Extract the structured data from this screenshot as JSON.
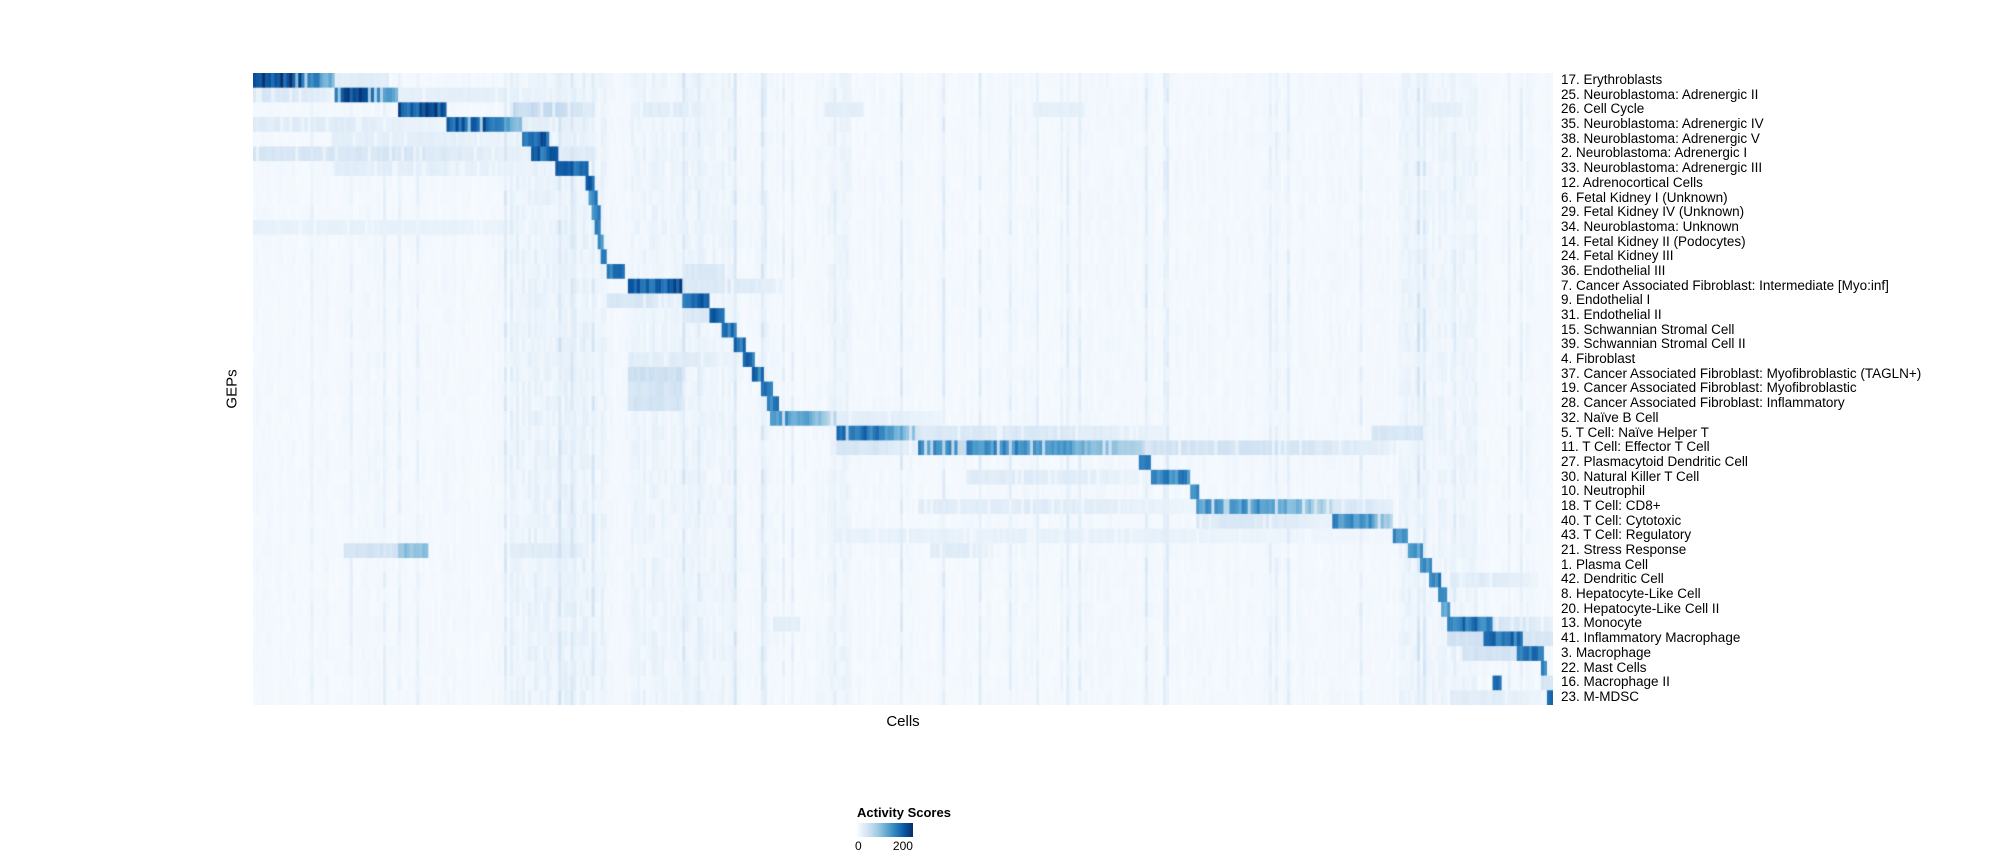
{
  "chart_data": {
    "type": "heatmap",
    "title": "",
    "xlabel": "Cells",
    "ylabel": "GEPs",
    "colorbar": {
      "title": "Activity Scores",
      "min": 0,
      "max": 200,
      "min_label": "0",
      "max_label": "200"
    },
    "colormap": "Blues",
    "colormap_stops": [
      [
        0.0,
        [
          247,
          251,
          255
        ]
      ],
      [
        0.125,
        [
          222,
          235,
          247
        ]
      ],
      [
        0.25,
        [
          198,
          219,
          239
        ]
      ],
      [
        0.375,
        [
          158,
          202,
          225
        ]
      ],
      [
        0.5,
        [
          107,
          174,
          214
        ]
      ],
      [
        0.625,
        [
          66,
          146,
          198
        ]
      ],
      [
        0.75,
        [
          33,
          113,
          181
        ]
      ],
      [
        0.875,
        [
          8,
          81,
          156
        ]
      ],
      [
        1.0,
        [
          8,
          48,
          107
        ]
      ]
    ],
    "value_cap": 225,
    "noise": {
      "seed": 1337,
      "base": 3,
      "columns": 430,
      "stripe_regions": [
        [
          0.2,
          0.27,
          9
        ],
        [
          0.29,
          0.37,
          7
        ],
        [
          0.44,
          0.46,
          6
        ],
        [
          0.88,
          0.94,
          6
        ]
      ]
    },
    "rows": [
      {
        "label": "17. Erythroblasts",
        "blocks": [
          [
            0.0,
            0.063,
            235
          ],
          [
            0.063,
            0.105,
            28
          ]
        ]
      },
      {
        "label": "25. Neuroblastoma: Adrenergic II",
        "blocks": [
          [
            0.063,
            0.112,
            225
          ],
          [
            0.0,
            0.063,
            40
          ],
          [
            0.112,
            0.26,
            24
          ]
        ]
      },
      {
        "label": "26. Cell Cycle",
        "blocks": [
          [
            0.112,
            0.148,
            222
          ],
          [
            0.2,
            0.262,
            62
          ],
          [
            0.3,
            0.355,
            30
          ],
          [
            0.44,
            0.47,
            26
          ],
          [
            0.6,
            0.64,
            24
          ],
          [
            0.9,
            0.93,
            24
          ]
        ]
      },
      {
        "label": "35. Neuroblastoma: Adrenergic IV",
        "blocks": [
          [
            0.148,
            0.207,
            222
          ],
          [
            0.0,
            0.148,
            30
          ],
          [
            0.207,
            0.262,
            26
          ]
        ]
      },
      {
        "label": "38. Neuroblastoma: Adrenergic V",
        "blocks": [
          [
            0.207,
            0.229,
            216
          ],
          [
            0.06,
            0.207,
            26
          ]
        ]
      },
      {
        "label": "2. Neuroblastoma: Adrenergic I",
        "blocks": [
          [
            0.213,
            0.236,
            212
          ],
          [
            0.0,
            0.213,
            42
          ],
          [
            0.236,
            0.262,
            30
          ]
        ]
      },
      {
        "label": "33. Neuroblastoma: Adrenergic III",
        "blocks": [
          [
            0.233,
            0.258,
            216
          ],
          [
            0.06,
            0.233,
            26
          ]
        ]
      },
      {
        "label": "12. Adrenocortical Cells",
        "blocks": [
          [
            0.256,
            0.262,
            195
          ]
        ]
      },
      {
        "label": "6. Fetal Kidney I (Unknown)",
        "blocks": [
          [
            0.259,
            0.2645,
            185
          ]
        ]
      },
      {
        "label": "29. Fetal Kidney IV (Unknown)",
        "blocks": [
          [
            0.261,
            0.2665,
            178
          ]
        ]
      },
      {
        "label": "34. Neuroblastoma: Unknown",
        "blocks": [
          [
            0.263,
            0.2685,
            178
          ],
          [
            0.0,
            0.26,
            20
          ]
        ]
      },
      {
        "label": "14. Fetal Kidney II (Podocytes)",
        "blocks": [
          [
            0.265,
            0.2705,
            178
          ]
        ]
      },
      {
        "label": "24. Fetal Kidney III",
        "blocks": [
          [
            0.267,
            0.2725,
            178
          ]
        ]
      },
      {
        "label": "36. Endothelial III",
        "blocks": [
          [
            0.271,
            0.285,
            198
          ],
          [
            0.33,
            0.362,
            36
          ]
        ]
      },
      {
        "label": "7. Cancer Associated Fibroblast: Intermediate [Myo:inf]",
        "blocks": [
          [
            0.288,
            0.33,
            218
          ],
          [
            0.33,
            0.41,
            36
          ]
        ]
      },
      {
        "label": "9. Endothelial I",
        "blocks": [
          [
            0.33,
            0.352,
            208
          ],
          [
            0.272,
            0.33,
            40
          ]
        ]
      },
      {
        "label": "31. Endothelial II",
        "blocks": [
          [
            0.351,
            0.362,
            202
          ],
          [
            0.33,
            0.351,
            36
          ]
        ]
      },
      {
        "label": "15. Schwannian Stromal Cell",
        "blocks": [
          [
            0.361,
            0.372,
            196
          ]
        ]
      },
      {
        "label": "39. Schwannian Stromal Cell II",
        "blocks": [
          [
            0.37,
            0.378,
            188
          ]
        ]
      },
      {
        "label": "4. Fibroblast",
        "blocks": [
          [
            0.377,
            0.386,
            196
          ],
          [
            0.288,
            0.377,
            30
          ]
        ]
      },
      {
        "label": "37. Cancer Associated Fibroblast: Myofibroblastic (TAGLN+)",
        "blocks": [
          [
            0.384,
            0.392,
            192
          ],
          [
            0.288,
            0.33,
            56
          ]
        ]
      },
      {
        "label": "19. Cancer Associated Fibroblast: Myofibroblastic",
        "blocks": [
          [
            0.39,
            0.4,
            196
          ],
          [
            0.288,
            0.33,
            46
          ]
        ]
      },
      {
        "label": "28. Cancer Associated Fibroblast: Inflammatory",
        "blocks": [
          [
            0.396,
            0.405,
            172
          ],
          [
            0.288,
            0.33,
            46
          ]
        ]
      },
      {
        "label": "32. Naïve B Cell",
        "blocks": [
          [
            0.398,
            0.448,
            152
          ],
          [
            0.448,
            0.53,
            26
          ]
        ]
      },
      {
        "label": "5. T Cell: Naïve Helper T",
        "blocks": [
          [
            0.448,
            0.512,
            188
          ],
          [
            0.512,
            0.7,
            36
          ],
          [
            0.86,
            0.9,
            40
          ]
        ]
      },
      {
        "label": "11. T Cell: Effector T Cell",
        "blocks": [
          [
            0.512,
            0.685,
            165
          ],
          [
            0.685,
            0.88,
            46
          ],
          [
            0.448,
            0.512,
            42
          ]
        ]
      },
      {
        "label": "27. Plasmacytoid Dendritic Cell",
        "blocks": [
          [
            0.682,
            0.69,
            188
          ]
        ]
      },
      {
        "label": "30. Natural Killer T Cell",
        "blocks": [
          [
            0.69,
            0.722,
            172
          ],
          [
            0.55,
            0.69,
            30
          ]
        ]
      },
      {
        "label": "10. Neutrophil",
        "blocks": [
          [
            0.72,
            0.728,
            162
          ]
        ]
      },
      {
        "label": "18. T Cell: CD8+",
        "blocks": [
          [
            0.726,
            0.83,
            155
          ],
          [
            0.512,
            0.726,
            30
          ],
          [
            0.83,
            0.88,
            36
          ]
        ]
      },
      {
        "label": "40. T Cell: Cytotoxic",
        "blocks": [
          [
            0.83,
            0.877,
            168
          ],
          [
            0.726,
            0.83,
            36
          ]
        ]
      },
      {
        "label": "43. T Cell: Regulatory",
        "blocks": [
          [
            0.876,
            0.889,
            158
          ],
          [
            0.448,
            0.876,
            20
          ]
        ]
      },
      {
        "label": "21. Stress Response",
        "blocks": [
          [
            0.888,
            0.899,
            158
          ],
          [
            0.112,
            0.136,
            112
          ],
          [
            0.07,
            0.112,
            46
          ],
          [
            0.2,
            0.262,
            30
          ],
          [
            0.52,
            0.57,
            30
          ]
        ]
      },
      {
        "label": "1. Plasma Cell",
        "blocks": [
          [
            0.897,
            0.906,
            166
          ]
        ]
      },
      {
        "label": "42. Dendritic Cell",
        "blocks": [
          [
            0.904,
            0.913,
            176
          ],
          [
            0.92,
            0.99,
            30
          ]
        ]
      },
      {
        "label": "8. Hepatocyte-Like Cell",
        "blocks": [
          [
            0.911,
            0.918,
            156
          ]
        ]
      },
      {
        "label": "20. Hepatocyte-Like Cell II",
        "blocks": [
          [
            0.915,
            0.922,
            148
          ]
        ]
      },
      {
        "label": "13. Monocyte",
        "blocks": [
          [
            0.919,
            0.953,
            188
          ],
          [
            0.953,
            1.0,
            42
          ],
          [
            0.4,
            0.42,
            26
          ]
        ]
      },
      {
        "label": "41. Inflammatory Macrophage",
        "blocks": [
          [
            0.947,
            0.977,
            192
          ],
          [
            0.919,
            0.947,
            52
          ],
          [
            0.977,
            1.0,
            40
          ]
        ]
      },
      {
        "label": "3. Macrophage",
        "blocks": [
          [
            0.973,
            0.993,
            206
          ],
          [
            0.93,
            0.973,
            46
          ]
        ]
      },
      {
        "label": "22. Mast Cells",
        "blocks": [
          [
            0.99,
            0.996,
            168
          ]
        ]
      },
      {
        "label": "16. Macrophage II",
        "blocks": [
          [
            0.953,
            0.961,
            182
          ],
          [
            0.99,
            1.0,
            42
          ]
        ]
      },
      {
        "label": "23. M-MDSC",
        "blocks": [
          [
            0.995,
            1.0,
            212
          ],
          [
            0.92,
            0.99,
            30
          ]
        ]
      }
    ]
  }
}
